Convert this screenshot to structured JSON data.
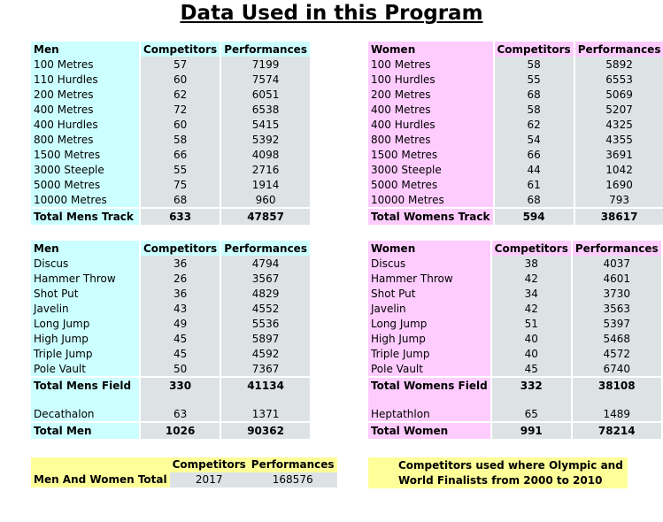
{
  "page_title": "Data Used in this Program",
  "headers": {
    "competitors": "Competitors",
    "performances": "Performances"
  },
  "men_track": {
    "label": "Men",
    "rows": [
      [
        "100 Metres",
        "57",
        "7199"
      ],
      [
        "110 Hurdles",
        "60",
        "7574"
      ],
      [
        "200 Metres",
        "62",
        "6051"
      ],
      [
        "400 Metres",
        "72",
        "6538"
      ],
      [
        "400 Hurdles",
        "60",
        "5415"
      ],
      [
        "800 Metres",
        "58",
        "5392"
      ],
      [
        "1500 Metres",
        "66",
        "4098"
      ],
      [
        "3000 Steeple",
        "55",
        "2716"
      ],
      [
        "5000 Metres",
        "75",
        "1914"
      ],
      [
        "10000 Metres",
        "68",
        "960"
      ]
    ],
    "total": [
      "Total Mens Track",
      "633",
      "47857"
    ]
  },
  "women_track": {
    "label": "Women",
    "rows": [
      [
        "100 Metres",
        "58",
        "5892"
      ],
      [
        "100 Hurdles",
        "55",
        "6553"
      ],
      [
        "200 Metres",
        "68",
        "5069"
      ],
      [
        "400 Metres",
        "58",
        "5207"
      ],
      [
        "400 Hurdles",
        "62",
        "4325"
      ],
      [
        "800 Metres",
        "54",
        "4355"
      ],
      [
        "1500 Metres",
        "66",
        "3691"
      ],
      [
        "3000 Steeple",
        "44",
        "1042"
      ],
      [
        "5000 Metres",
        "61",
        "1690"
      ],
      [
        "10000 Metres",
        "68",
        "793"
      ]
    ],
    "total": [
      "Total Womens Track",
      "594",
      "38617"
    ]
  },
  "men_field": {
    "label": "Men",
    "rows": [
      [
        "Discus",
        "36",
        "4794"
      ],
      [
        "Hammer Throw",
        "26",
        "3567"
      ],
      [
        "Shot Put",
        "36",
        "4829"
      ],
      [
        "Javelin",
        "43",
        "4552"
      ],
      [
        "Long Jump",
        "49",
        "5536"
      ],
      [
        "High Jump",
        "45",
        "5897"
      ],
      [
        "Triple Jump",
        "45",
        "4592"
      ],
      [
        "Pole Vault",
        "50",
        "7367"
      ]
    ],
    "total": [
      "Total Mens Field",
      "330",
      "41134"
    ],
    "combined": [
      "Decathalon",
      "63",
      "1371"
    ],
    "grand_total": [
      "Total Men",
      "1026",
      "90362"
    ]
  },
  "women_field": {
    "label": "Women",
    "rows": [
      [
        "Discus",
        "38",
        "4037"
      ],
      [
        "Hammer Throw",
        "42",
        "4601"
      ],
      [
        "Shot Put",
        "34",
        "3730"
      ],
      [
        "Javelin",
        "42",
        "3563"
      ],
      [
        "Long Jump",
        "51",
        "5397"
      ],
      [
        "High Jump",
        "40",
        "5468"
      ],
      [
        "Triple Jump",
        "40",
        "4572"
      ],
      [
        "Pole Vault",
        "45",
        "6740"
      ]
    ],
    "total": [
      "Total Womens Field",
      "332",
      "38108"
    ],
    "combined": [
      "Heptathlon",
      "65",
      "1489"
    ],
    "grand_total": [
      "Total Women",
      "991",
      "78214"
    ]
  },
  "overall": {
    "label": "Men And Women Total",
    "competitors": "2017",
    "performances": "168576"
  },
  "note": {
    "line1": "Competitors used where Olympic and",
    "line2": "World Finalists from 2000 to 2010"
  }
}
